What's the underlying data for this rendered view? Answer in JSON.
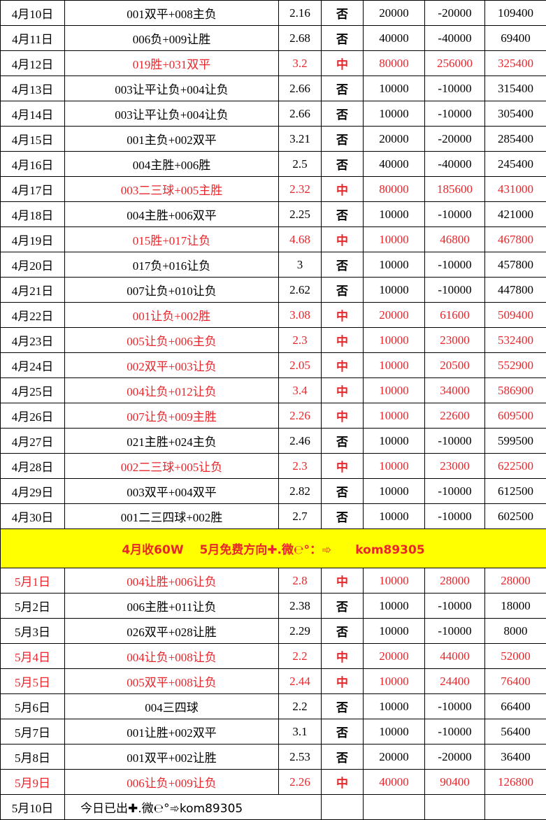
{
  "april_rows": [
    {
      "cells": [
        "4月10日",
        "001双平+008主负",
        "2.16",
        "否",
        "20000",
        "-20000",
        "109400"
      ]
    },
    {
      "cells": [
        "4月11日",
        "006负+009让胜",
        "2.68",
        "否",
        "40000",
        "-40000",
        "69400"
      ]
    },
    {
      "cells": [
        "4月12日",
        "019胜+031双平",
        "3.2",
        "中",
        "80000",
        "256000",
        "325400"
      ],
      "color": "#e8262b"
    },
    {
      "cells": [
        "4月13日",
        "003让平让负+004让负",
        "2.66",
        "否",
        "10000",
        "-10000",
        "315400"
      ]
    },
    {
      "cells": [
        "4月14日",
        "003让平让负+004让负",
        "2.66",
        "否",
        "10000",
        "-10000",
        "305400"
      ]
    },
    {
      "cells": [
        "4月15日",
        "001主负+002双平",
        "3.21",
        "否",
        "20000",
        "-20000",
        "285400"
      ]
    },
    {
      "cells": [
        "4月16日",
        "004主胜+006胜",
        "2.5",
        "否",
        "40000",
        "-40000",
        "245400"
      ]
    },
    {
      "cells": [
        "4月17日",
        "003二三球+005主胜",
        "2.32",
        "中",
        "80000",
        "185600",
        "431000"
      ],
      "color": "#e8262b"
    },
    {
      "cells": [
        "4月18日",
        "004主胜+006双平",
        "2.25",
        "否",
        "10000",
        "-10000",
        "421000"
      ]
    },
    {
      "cells": [
        "4月19日",
        "015胜+017让负",
        "4.68",
        "中",
        "10000",
        "46800",
        "467800"
      ],
      "color": "#e8262b"
    },
    {
      "cells": [
        "4月20日",
        "017负+016让负",
        "3",
        "否",
        "10000",
        "-10000",
        "457800"
      ]
    },
    {
      "cells": [
        "4月21日",
        "007让负+010让负",
        "2.62",
        "否",
        "10000",
        "-10000",
        "447800"
      ]
    },
    {
      "cells": [
        "4月22日",
        "001让负+002胜",
        "3.08",
        "中",
        "20000",
        "61600",
        "509400"
      ],
      "color": "#e8262b"
    },
    {
      "cells": [
        "4月23日",
        "005让负+006主负",
        "2.3",
        "中",
        "10000",
        "23000",
        "532400"
      ],
      "color": "#e8262b"
    },
    {
      "cells": [
        "4月24日",
        "002双平+003让负",
        "2.05",
        "中",
        "10000",
        "20500",
        "552900"
      ],
      "color": "#e8262b"
    },
    {
      "cells": [
        "4月25日",
        "004让负+012让负",
        "3.4",
        "中",
        "10000",
        "34000",
        "586900"
      ],
      "color": "#e8262b"
    },
    {
      "cells": [
        "4月26日",
        "007让负+009主胜",
        "2.26",
        "中",
        "10000",
        "22600",
        "609500"
      ],
      "color": "#e8262b"
    },
    {
      "cells": [
        "4月27日",
        "021主胜+024主负",
        "2.46",
        "否",
        "10000",
        "-10000",
        "599500"
      ]
    },
    {
      "cells": [
        "4月28日",
        "002二三球+005让负",
        "2.3",
        "中",
        "10000",
        "23000",
        "622500"
      ],
      "color": "#e8262b"
    },
    {
      "cells": [
        "4月29日",
        "003双平+004双平",
        "2.82",
        "否",
        "10000",
        "-10000",
        "612500"
      ]
    },
    {
      "cells": [
        "4月30日",
        "001二三四球+002胜",
        "2.7",
        "否",
        "10000",
        "-10000",
        "602500"
      ]
    }
  ],
  "banner": {
    "text": "4月收60W　 5月免费方向✚.微℮°：➾　　kom89305",
    "background": "#ffff00",
    "color": "#e8262b"
  },
  "may_rows": [
    {
      "cells": [
        "5月1日",
        "004让胜+006让负",
        "2.8",
        "中",
        "10000",
        "28000",
        "28000"
      ],
      "color": "#e8262b"
    },
    {
      "cells": [
        "5月2日",
        "006主胜+011让负",
        "2.38",
        "否",
        "10000",
        "-10000",
        "18000"
      ]
    },
    {
      "cells": [
        "5月3日",
        "026双平+028让胜",
        "2.29",
        "否",
        "10000",
        "-10000",
        "8000"
      ]
    },
    {
      "cells": [
        "5月4日",
        "004让负+008让负",
        "2.2",
        "中",
        "20000",
        "44000",
        "52000"
      ],
      "color": "#e8262b"
    },
    {
      "cells": [
        "5月5日",
        "005双平+008让负",
        "2.44",
        "中",
        "10000",
        "24400",
        "76400"
      ],
      "color": "#e8262b"
    },
    {
      "cells": [
        "5月6日",
        "004三四球",
        "2.2",
        "否",
        "10000",
        "-10000",
        "66400"
      ]
    },
    {
      "cells": [
        "5月7日",
        "001让胜+002双平",
        "3.1",
        "否",
        "10000",
        "-10000",
        "56400"
      ]
    },
    {
      "cells": [
        "5月8日",
        "001双平+002让胜",
        "2.53",
        "否",
        "20000",
        "-20000",
        "36400"
      ]
    },
    {
      "cells": [
        "5月9日",
        "006让负+009让负",
        "2.26",
        "中",
        "40000",
        "90400",
        "126800"
      ],
      "color": "#e8262b"
    }
  ],
  "footer_row": {
    "date": "5月10日",
    "note": "今日已出✚.微℮°➾kom89305"
  }
}
